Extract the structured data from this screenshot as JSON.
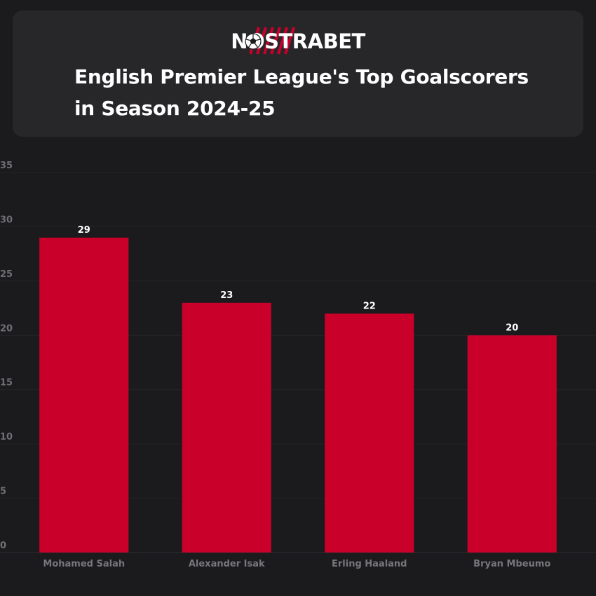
{
  "brand": {
    "name": "NOSTRABET",
    "accent_color": "#c8002a",
    "icon": "soccer-ball-icon"
  },
  "header": {
    "title": "English Premier League's Top Goalscorers in Season 2024-25"
  },
  "colors": {
    "background": "#1b1b1d",
    "card": "#27272a",
    "bar": "#c8002a",
    "gridline": "#242427",
    "tick_text": "#6f6f74"
  },
  "chart_data": {
    "type": "bar",
    "title": "English Premier League's Top Goalscorers in Season 2024-25",
    "xlabel": "",
    "ylabel": "",
    "categories": [
      "Mohamed Salah",
      "Alexander Isak",
      "Erling Haaland",
      "Bryan Mbeumo"
    ],
    "values": [
      29,
      23,
      22,
      20
    ],
    "data_labels": [
      "29",
      "23",
      "22",
      "20"
    ],
    "yticks": [
      0,
      5,
      10,
      15,
      20,
      25,
      30,
      35
    ],
    "ylim": [
      0,
      35
    ],
    "grid": true,
    "legend": "none"
  }
}
